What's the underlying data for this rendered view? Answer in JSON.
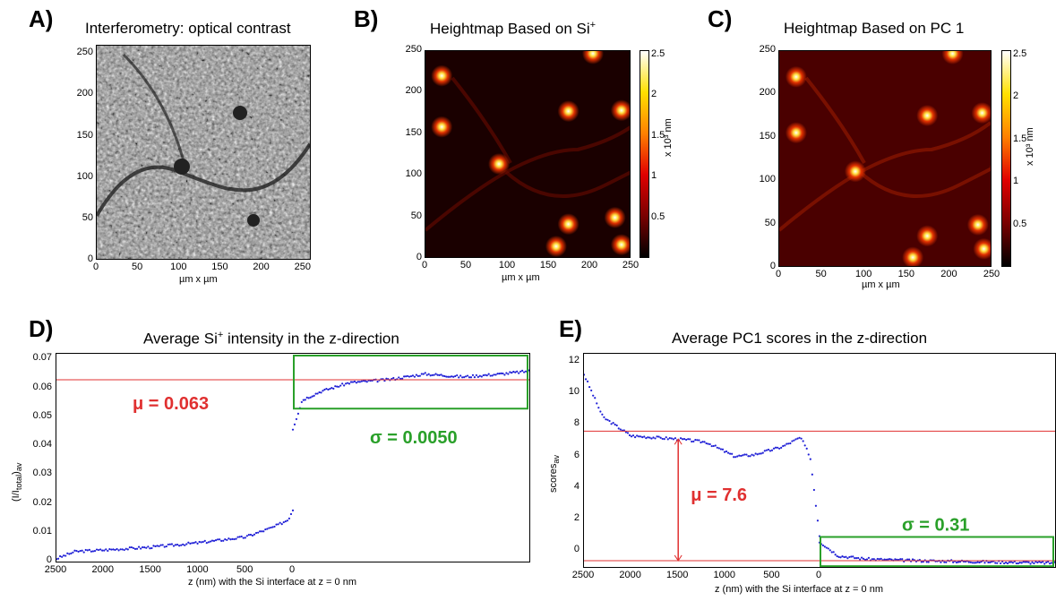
{
  "panels": {
    "A": {
      "letter": "A)",
      "title": "Interferometry: optical contrast",
      "xlabel": "µm x µm",
      "xticks": [
        "0",
        "50",
        "100",
        "150",
        "200",
        "250"
      ],
      "yticks": [
        "250",
        "200",
        "150",
        "100",
        "50",
        "0"
      ]
    },
    "B": {
      "letter": "B)",
      "title_main": "Heightmap Based on Si",
      "title_sup": "+",
      "xlabel": "µm x µm",
      "xticks": [
        "0",
        "50",
        "100",
        "150",
        "200",
        "250"
      ],
      "yticks": [
        "250",
        "200",
        "150",
        "100",
        "50",
        "0"
      ],
      "cbar_ticks": [
        "2.5",
        "2",
        "1.5",
        "1",
        "0.5"
      ],
      "cbar_label": "x 10³ nm"
    },
    "C": {
      "letter": "C)",
      "title": "Heightmap Based on PC 1",
      "xlabel": "µm x µm",
      "xticks": [
        "0",
        "50",
        "100",
        "150",
        "200",
        "250"
      ],
      "yticks": [
        "250",
        "200",
        "150",
        "100",
        "50",
        "0"
      ],
      "cbar_ticks": [
        "2.5",
        "2",
        "1.5",
        "1",
        "0.5"
      ],
      "cbar_label": "x 10³ nm"
    },
    "D": {
      "letter": "D)",
      "title_main": "Average Si",
      "title_sup": "+",
      "title_rest": " intensity in the z-direction",
      "xlabel": "z (nm) with the Si interface at z = 0 nm",
      "ylabel": "(I/I_total)_av",
      "xticks": [
        "2500",
        "2000",
        "1500",
        "1000",
        "500",
        "0"
      ],
      "yticks": [
        "0.07",
        "0.06",
        "0.05",
        "0.04",
        "0.03",
        "0.02",
        "0.01",
        "0"
      ],
      "mu": "μ = 0.063",
      "sigma": "σ = 0.0050"
    },
    "E": {
      "letter": "E)",
      "title": "Average PC1 scores in the z-direction",
      "xlabel": "z (nm) with the Si interface at z = 0 nm",
      "ylabel": "scores_av",
      "xticks": [
        "2500",
        "2000",
        "1500",
        "1000",
        "500",
        "0"
      ],
      "yticks": [
        "12",
        "10",
        "8",
        "6",
        "4",
        "2",
        "0"
      ],
      "mu": "μ = 7.6",
      "sigma": "σ = 0.31"
    }
  },
  "colors": {
    "mu_line": "#e03030",
    "sigma_box": "#2aa02a",
    "points": "#1f1fd6",
    "mu_text": "#e03030",
    "sigma_text": "#2aa02a"
  },
  "chart_data": [
    {
      "type": "heatmap",
      "panel": "A",
      "title": "Interferometry: optical contrast",
      "xlabel": "µm x µm",
      "xlim": [
        0,
        260
      ],
      "ylim": [
        0,
        260
      ],
      "colormap": "gray"
    },
    {
      "type": "heatmap",
      "panel": "B",
      "title": "Heightmap Based on Si+",
      "xlabel": "µm x µm",
      "xlim": [
        0,
        250
      ],
      "ylim": [
        0,
        250
      ],
      "colormap": "hot",
      "clim": [
        0,
        2.5
      ],
      "colorbar_label": "x 10³ nm",
      "hotspots": [
        [
          20,
          220
        ],
        [
          90,
          113
        ],
        [
          175,
          177
        ],
        [
          205,
          247
        ],
        [
          20,
          158
        ],
        [
          175,
          40
        ],
        [
          232,
          48
        ],
        [
          240,
          178
        ],
        [
          160,
          13
        ],
        [
          240,
          15
        ]
      ]
    },
    {
      "type": "heatmap",
      "panel": "C",
      "title": "Heightmap Based on PC 1",
      "xlabel": "µm x µm",
      "xlim": [
        0,
        250
      ],
      "ylim": [
        0,
        250
      ],
      "colormap": "hot",
      "clim": [
        0,
        2.5
      ],
      "colorbar_label": "x 10³ nm",
      "hotspots": [
        [
          20,
          220
        ],
        [
          90,
          110
        ],
        [
          175,
          175
        ],
        [
          205,
          247
        ],
        [
          20,
          155
        ],
        [
          175,
          35
        ],
        [
          235,
          48
        ],
        [
          240,
          178
        ],
        [
          158,
          10
        ],
        [
          242,
          20
        ]
      ]
    },
    {
      "type": "scatter",
      "panel": "D",
      "title": "Average Si+ intensity in the z-direction",
      "xlabel": "z (nm) with the Si interface at z = 0 nm",
      "ylabel": "(I/I_total)_av",
      "xlim": [
        2500,
        -2500
      ],
      "ylim": [
        0,
        0.072
      ],
      "mu": 0.063,
      "sigma": 0.005,
      "series": [
        {
          "x": [
            2500,
            2300,
            2000,
            1500,
            1000,
            500,
            200,
            50,
            0
          ],
          "y": [
            0.001,
            0.0035,
            0.004,
            0.005,
            0.0065,
            0.0085,
            0.012,
            0.0145,
            0.018
          ]
        },
        {
          "x": [
            0,
            -100,
            -300,
            -600,
            -1000,
            -1400,
            -1800,
            -2200,
            -2500
          ],
          "y": [
            0.046,
            0.056,
            0.059,
            0.062,
            0.063,
            0.065,
            0.064,
            0.065,
            0.066
          ]
        }
      ]
    },
    {
      "type": "scatter",
      "panel": "E",
      "title": "Average PC1 scores in the z-direction",
      "xlabel": "z (nm) with the Si interface at z = 0 nm",
      "ylabel": "scores_av",
      "xlim": [
        2500,
        -2500
      ],
      "ylim": [
        -1,
        12.5
      ],
      "mu": 7.6,
      "sigma": 0.31,
      "series": [
        {
          "x": [
            2500,
            2300,
            2000,
            1500,
            1200,
            900,
            700,
            400,
            200,
            100,
            0
          ],
          "y": [
            11.2,
            8.5,
            7.3,
            7.1,
            6.9,
            6.0,
            6.1,
            6.6,
            7.2,
            6.0,
            1.0
          ]
        },
        {
          "x": [
            0,
            -200,
            -500,
            -1000,
            -1500,
            -2000,
            -2500
          ],
          "y": [
            0.6,
            -0.3,
            -0.5,
            -0.6,
            -0.65,
            -0.7,
            -0.75
          ]
        }
      ]
    }
  ]
}
